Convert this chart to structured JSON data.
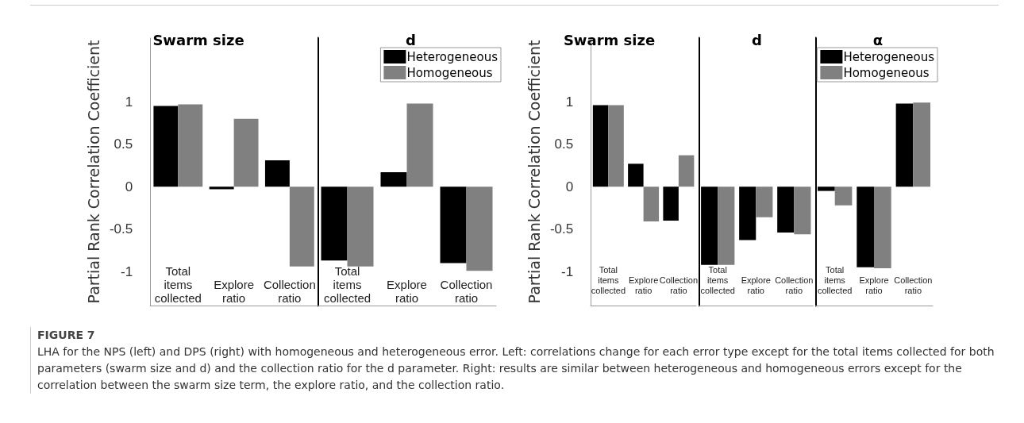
{
  "chart_data": [
    {
      "type": "bar",
      "title": "Swarm size",
      "ylabel": "Partial Rank Correlation Coefficient",
      "categories": [
        "Total items collected",
        "Explore ratio",
        "Collection ratio"
      ],
      "ylim": [
        -1.4,
        1.75
      ],
      "yticks": [
        -1,
        -0.5,
        0,
        0.5,
        1
      ],
      "grid": false,
      "legend": false,
      "series": [
        {
          "color": "#000000",
          "values": [
            0.95,
            -0.03,
            0.31
          ]
        },
        {
          "color": "#808080",
          "values": [
            0.97,
            0.8,
            -0.94
          ]
        }
      ],
      "annotations": [
        "FIGURE 7",
        "LHA for the NPS (left) and DPS (right) with homogeneous and heterogeneous error. Left: correlations change for each error type except for the total items collected for both parameters (swarm size and d) and the collection ratio for the d parameter. Right: results are similar between heterogeneous and homogeneous errors except for the correlation between the swarm size term, the explore ratio, and the collection ratio."
      ]
    },
    {
      "type": "bar",
      "title": "d",
      "categories": [
        "Total items collected",
        "Explore ratio",
        "Collection ratio"
      ],
      "ylim": [
        -1.4,
        1.75
      ],
      "yticks": [
        -1,
        -0.5,
        0,
        0.5,
        1
      ],
      "tick_labels": "x",
      "grid": false,
      "legend": "top right",
      "series": [
        {
          "name": "Heterogeneous",
          "color": "#000000",
          "values": [
            -0.87,
            0.17,
            -0.9
          ]
        },
        {
          "name": "Homogeneous",
          "color": "#808080",
          "values": [
            -0.94,
            0.98,
            -0.99
          ]
        }
      ]
    },
    {
      "type": "bar",
      "title": "Swarm size",
      "ylabel": "Partial Rank Correlation Coefficient",
      "categories": [
        "Total items collected",
        "Explore ratio",
        "Collection ratio"
      ],
      "ylim": [
        -1.4,
        1.75
      ],
      "yticks": [
        -1,
        -0.5,
        0,
        0.5,
        1
      ],
      "grid": false,
      "legend": false,
      "series": [
        {
          "color": "#000000",
          "values": [
            0.96,
            0.27,
            -0.4
          ]
        },
        {
          "color": "#808080",
          "values": [
            0.96,
            -0.41,
            0.37
          ]
        }
      ]
    },
    {
      "type": "bar",
      "title": "d",
      "categories": [
        "Total items collected",
        "Explore ratio",
        "Collection ratio"
      ],
      "ylim": [
        -1.4,
        1.75
      ],
      "yticks": [
        -1,
        -0.5,
        0,
        0.5,
        1
      ],
      "tick_labels": "x",
      "grid": false,
      "legend": false,
      "series": [
        {
          "color": "#000000",
          "values": [
            -0.92,
            -0.63,
            -0.54
          ]
        },
        {
          "color": "#808080",
          "values": [
            -0.92,
            -0.36,
            -0.56
          ]
        }
      ]
    },
    {
      "type": "bar",
      "title": "α",
      "categories": [
        "Total items collected",
        "Explore ratio",
        "Collection ratio"
      ],
      "ylim": [
        -1.4,
        1.75
      ],
      "yticks": [
        -1,
        -0.5,
        0,
        0.5,
        1
      ],
      "tick_labels": "x",
      "grid": false,
      "legend": "top right",
      "series": [
        {
          "name": "Heterogeneous",
          "color": "#000000",
          "values": [
            -0.05,
            -0.95,
            0.98
          ]
        },
        {
          "name": "Homogeneous",
          "color": "#808080",
          "values": [
            -0.22,
            -0.96,
            0.99
          ]
        }
      ]
    }
  ]
}
